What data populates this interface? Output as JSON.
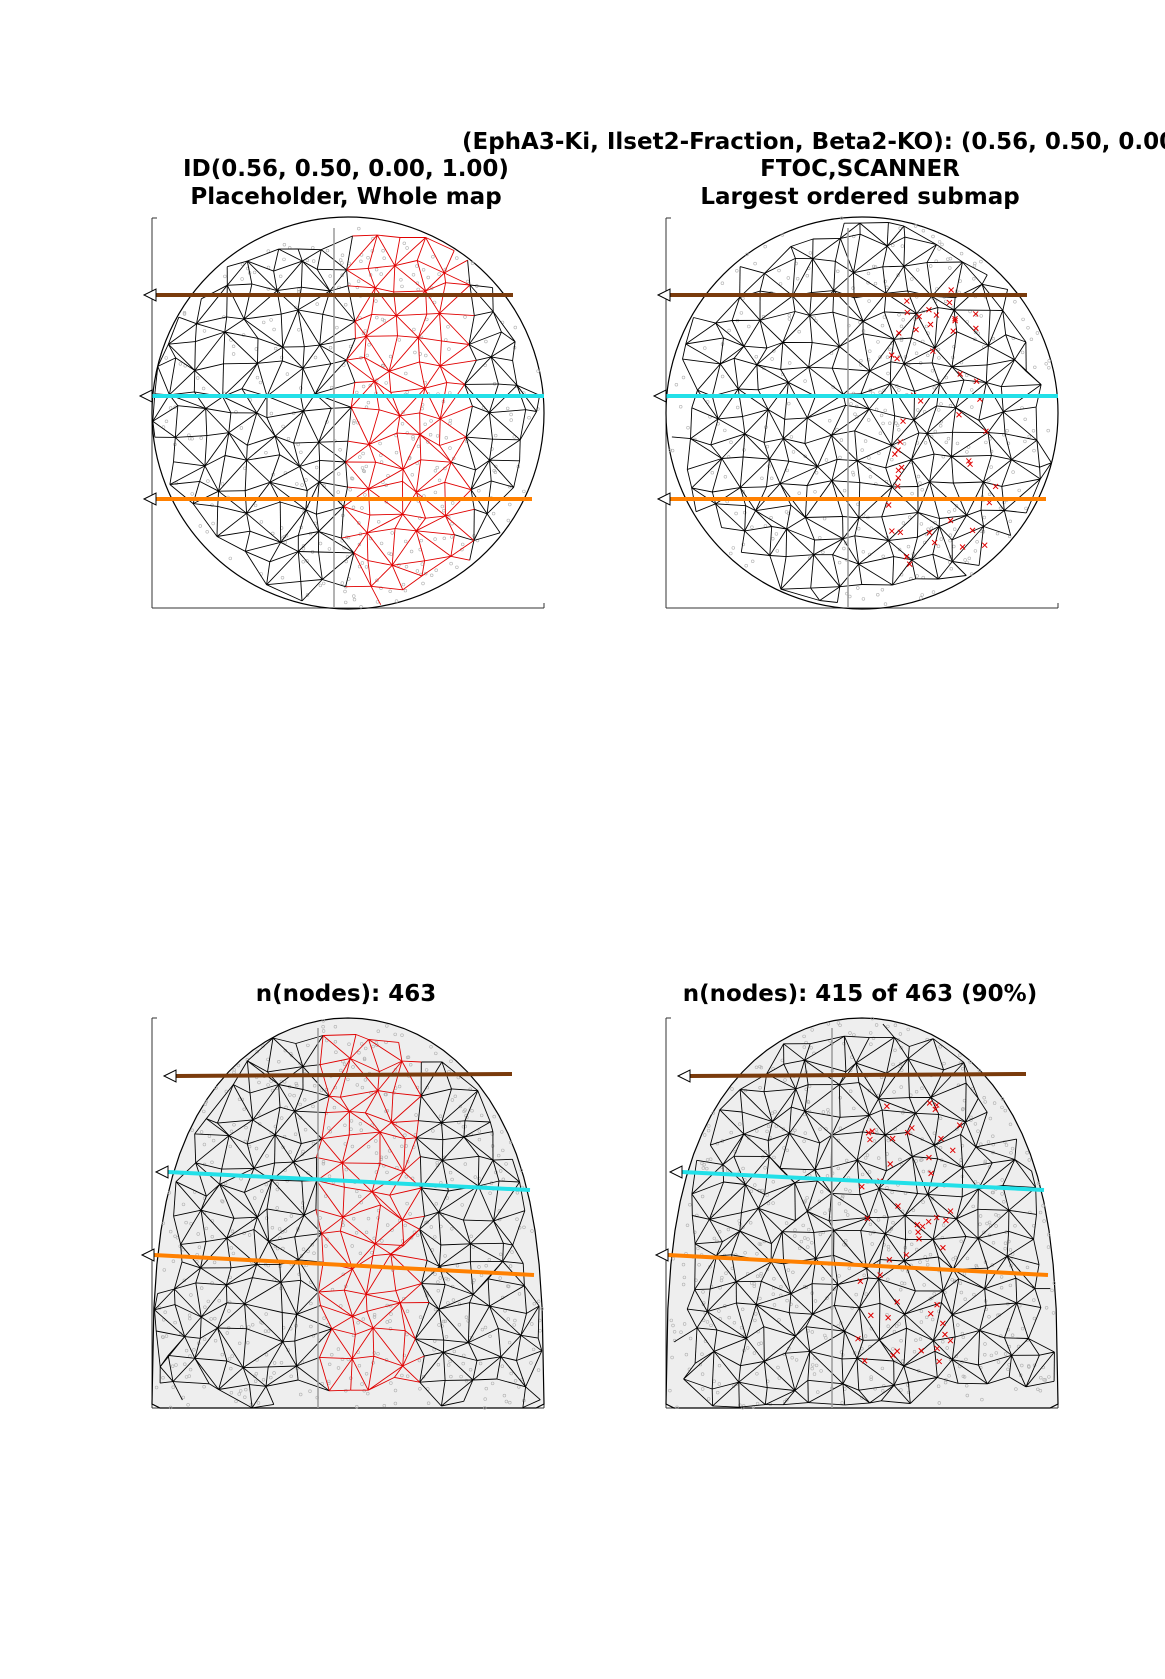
{
  "suptitle": "(EphA3-Ki, Ilset2-Fraction, Beta2-KO): (0.56, 0.50, 0.00",
  "panels": [
    {
      "id": "tl",
      "shape": "circle",
      "title1": "ID(0.56, 0.50, 0.00, 1.00)",
      "title2": "Placeholder, Whole map",
      "red_mode": "edges"
    },
    {
      "id": "tr",
      "shape": "circle",
      "title1": "FTOC,SCANNER",
      "title2": "Largest ordered submap",
      "red_mode": "crosses"
    },
    {
      "id": "bl",
      "shape": "dome",
      "title1": "n(nodes): 463",
      "title2": "",
      "red_mode": "edges"
    },
    {
      "id": "br",
      "shape": "dome",
      "title1": "n(nodes): 415 of 463 (90%)",
      "title2": "",
      "red_mode": "crosses"
    }
  ],
  "colors": {
    "mesh": "#000000",
    "unordered": "#e00000",
    "line_top": "#7a3b0c",
    "line_mid": "#22e0e8",
    "line_bottom": "#ff8000",
    "background_points": "#b0b0b0"
  },
  "nodes_total": 463,
  "nodes_ordered": 415
}
